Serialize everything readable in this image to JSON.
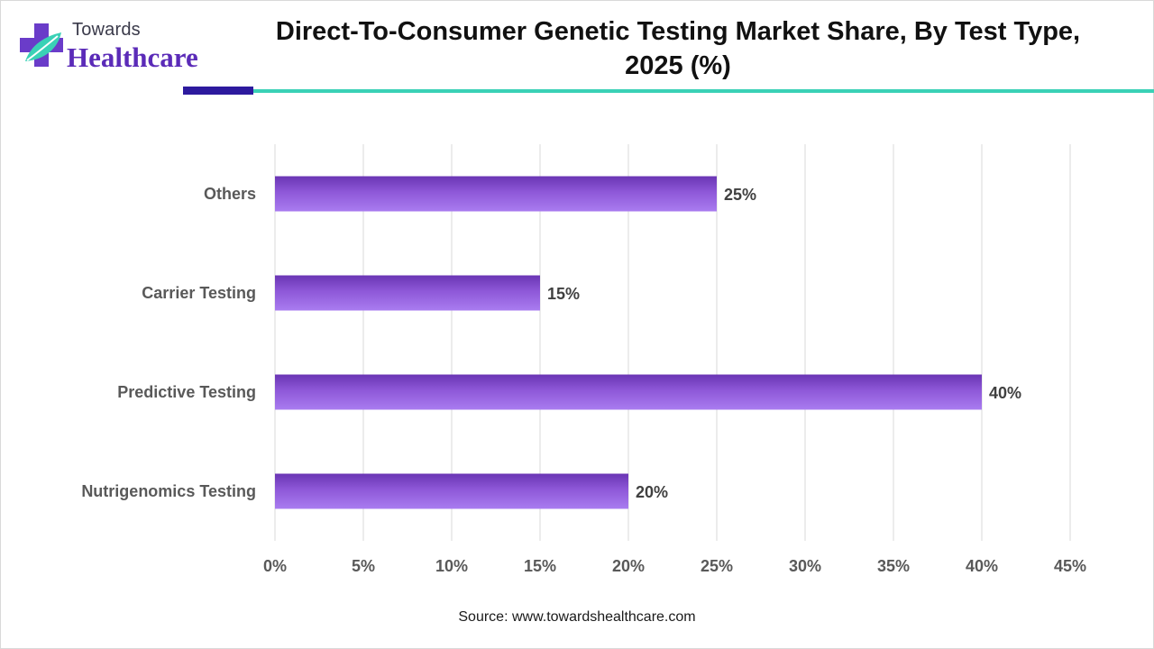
{
  "logo": {
    "top_text": "Towards",
    "main_text": "Healthcare",
    "icon": "medical-cross-leaf-icon",
    "colors": {
      "purple": "#5b2bb8",
      "teal": "#3ad1b6"
    }
  },
  "source_text": "Source: www.towardshealthcare.com",
  "accent_colors": {
    "dark_bar": "#2d1a9e",
    "teal_line": "#3ad1b6",
    "bar_fill": "#9460e0"
  },
  "chart_data": {
    "type": "bar",
    "orientation": "horizontal",
    "title": "Direct-To-Consumer Genetic Testing Market Share, By Test Type, 2025 (%)",
    "xlabel": "",
    "ylabel": "",
    "categories": [
      "Others",
      "Carrier Testing",
      "Predictive Testing",
      "Nutrigenomics Testing"
    ],
    "values": [
      25,
      15,
      40,
      20
    ],
    "value_labels": [
      "25%",
      "15%",
      "40%",
      "20%"
    ],
    "xlim": [
      0,
      45
    ],
    "x_ticks": [
      0,
      5,
      10,
      15,
      20,
      25,
      30,
      35,
      40,
      45
    ],
    "x_tick_labels": [
      "0%",
      "5%",
      "10%",
      "15%",
      "20%",
      "25%",
      "30%",
      "35%",
      "40%",
      "45%"
    ],
    "grid": "vertical",
    "legend": "none"
  }
}
